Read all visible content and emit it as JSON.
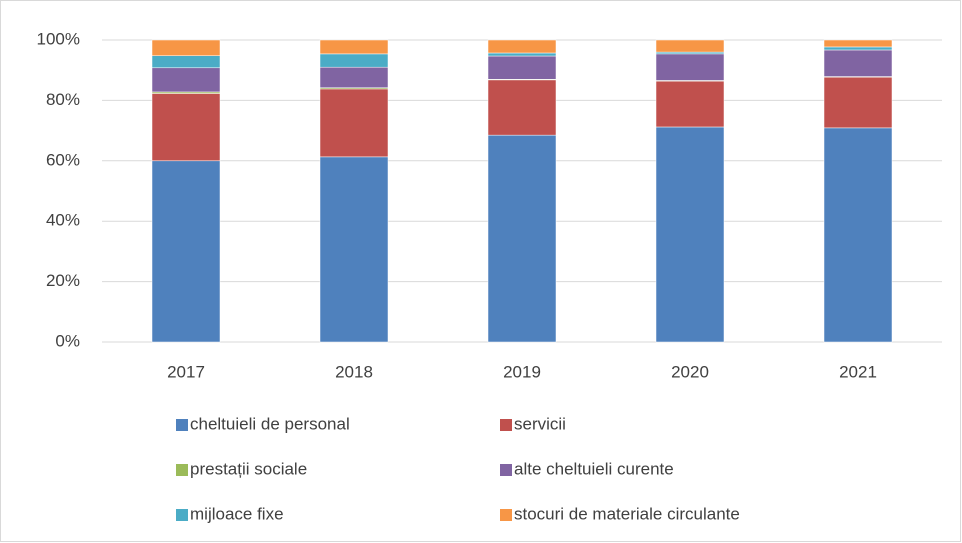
{
  "chart_data": {
    "type": "stacked_bar",
    "categories": [
      "2017",
      "2018",
      "2019",
      "2020",
      "2021"
    ],
    "series": [
      {
        "name": "cheltuieli de personal",
        "color": "#4f81bd",
        "values": [
          60,
          61.3,
          68.5,
          71.2,
          70.9
        ]
      },
      {
        "name": "servicii",
        "color": "#c0504d",
        "values": [
          22.3,
          22.5,
          18.3,
          15.2,
          16.8
        ]
      },
      {
        "name": "prestații sociale",
        "color": "#9bbb59",
        "values": [
          0.5,
          0.4,
          0.2,
          0.2,
          0.2
        ]
      },
      {
        "name": "alte cheltuieli curente",
        "color": "#8064a2",
        "values": [
          8,
          6.8,
          7.7,
          8.8,
          8.8
        ]
      },
      {
        "name": "mijloace fixe",
        "color": "#4bacc6",
        "values": [
          4,
          4.4,
          1,
          0.6,
          1
        ]
      },
      {
        "name": "stocuri de materiale circulante",
        "color": "#f79646",
        "values": [
          5.2,
          4.6,
          4.3,
          4,
          2.3
        ]
      }
    ],
    "ylim": [
      0,
      100
    ],
    "yticks": [
      {
        "value": 0,
        "label": "0%"
      },
      {
        "value": 20,
        "label": "20%"
      },
      {
        "value": 40,
        "label": "40%"
      },
      {
        "value": 60,
        "label": "60%"
      },
      {
        "value": 80,
        "label": "80%"
      },
      {
        "value": 100,
        "label": "100%"
      }
    ],
    "grid": true,
    "legend": "bottom"
  }
}
